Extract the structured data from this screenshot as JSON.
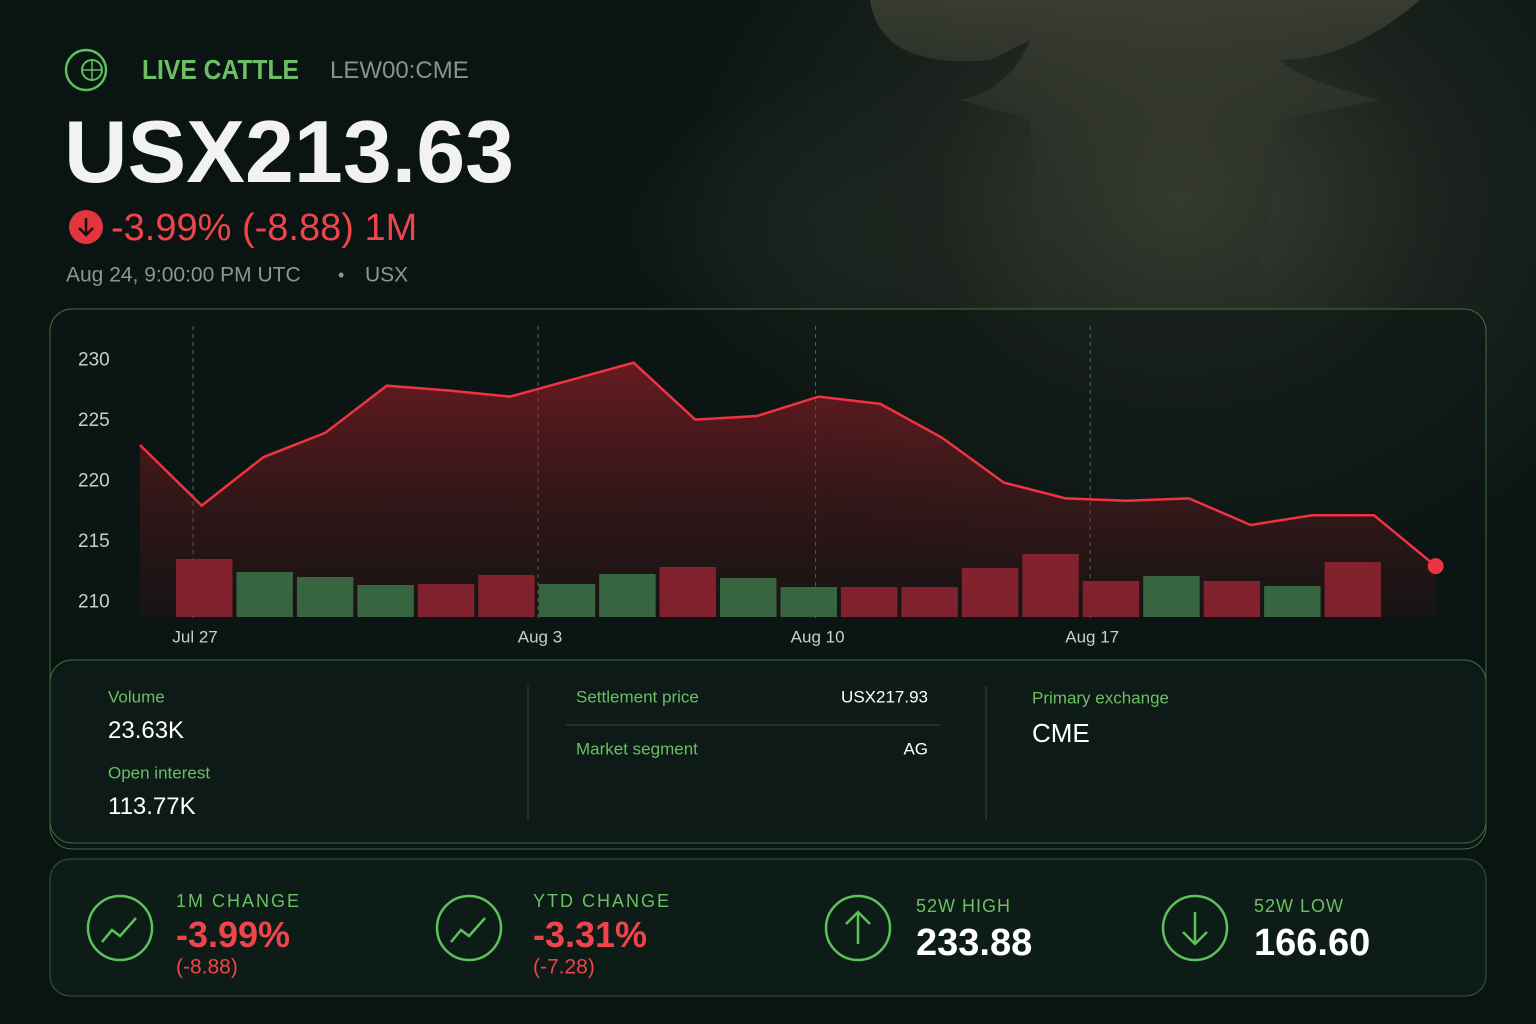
{
  "header": {
    "title": "LIVE CATTLE",
    "symbol": "LEW00:CME",
    "price": "USX213.63",
    "change": "-3.99% (-8.88) 1M",
    "timestamp": "Aug 24, 9:00:00 PM UTC",
    "separator": "•",
    "currency": "USX"
  },
  "chart_data": {
    "type": "line",
    "categories": [
      null,
      null,
      null,
      null,
      null,
      null,
      null,
      null,
      null,
      null,
      null,
      null,
      null,
      null,
      null,
      null,
      null,
      null,
      null,
      null,
      null,
      null
    ],
    "series": [
      {
        "color": "#ef3340",
        "values": [
          223.0,
          218.0,
          222.0,
          224.0,
          227.9,
          227.5,
          227.0,
          228.4,
          229.8,
          225.1,
          225.4,
          227.0,
          226.4,
          223.6,
          219.9,
          218.6,
          218.4,
          218.6,
          216.4,
          217.2,
          217.2,
          213.0
        ]
      }
    ],
    "volume": {
      "values": [
        58,
        45,
        40,
        32,
        33,
        42,
        33,
        43,
        50,
        39,
        30,
        30,
        30,
        49,
        63,
        36,
        41,
        36,
        31,
        55
      ],
      "colors": [
        "#8c2430",
        "#3a6e44",
        "#3a6e44",
        "#3a6e44",
        "#8c2430",
        "#8c2430",
        "#3a6e44",
        "#3a6e44",
        "#8c2430",
        "#3a6e44",
        "#3a6e44",
        "#8c2430",
        "#8c2430",
        "#8c2430",
        "#8c2430",
        "#8c2430",
        "#3a6e44",
        "#8c2430",
        "#3a6e44",
        "#8c2430"
      ]
    },
    "ylim": [
      208.8,
      232.5
    ],
    "yticks": [
      210,
      215,
      220,
      225,
      230
    ],
    "xticks": [
      {
        "value": 0.86,
        "label": "Jul 27"
      },
      {
        "value": 6.45,
        "label": "Aug 3"
      },
      {
        "value": 10.95,
        "label": "Aug 10"
      },
      {
        "value": 15.4,
        "label": "Aug 17"
      }
    ]
  },
  "details": {
    "volume": {
      "label": "Volume",
      "value": "23.63K"
    },
    "open_interest": {
      "label": "Open interest",
      "value": "113.77K"
    },
    "settlement_price": {
      "label": "Settlement price",
      "value": "USX217.93"
    },
    "market_segment": {
      "label": "Market segment",
      "value": "AG"
    },
    "primary_exchange": {
      "label": "Primary exchange",
      "value": "CME"
    }
  },
  "stats": [
    {
      "label": "1M CHANGE",
      "value": "-3.99%",
      "sub": "(-8.88)"
    },
    {
      "label": "YTD CHANGE",
      "value": "-3.31%",
      "sub": "(-7.28)"
    },
    {
      "label": "52W HIGH",
      "value": "233.88"
    },
    {
      "label": "52W LOW",
      "value": "166.60"
    }
  ]
}
